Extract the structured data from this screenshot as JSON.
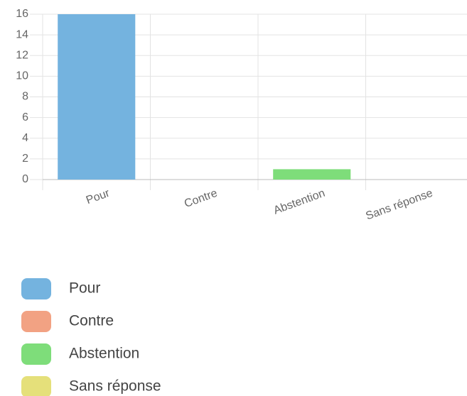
{
  "chart_data": {
    "type": "bar",
    "categories": [
      "Pour",
      "Contre",
      "Abstention",
      "Sans réponse"
    ],
    "values": [
      16,
      0,
      1,
      0
    ],
    "colors": [
      "#74b3df",
      "#f2a283",
      "#7edd7a",
      "#e5e07a"
    ],
    "ylim": [
      0,
      16
    ],
    "yticks": [
      0,
      2,
      4,
      6,
      8,
      10,
      12,
      14,
      16
    ],
    "grid": true,
    "legend": "bottom"
  }
}
